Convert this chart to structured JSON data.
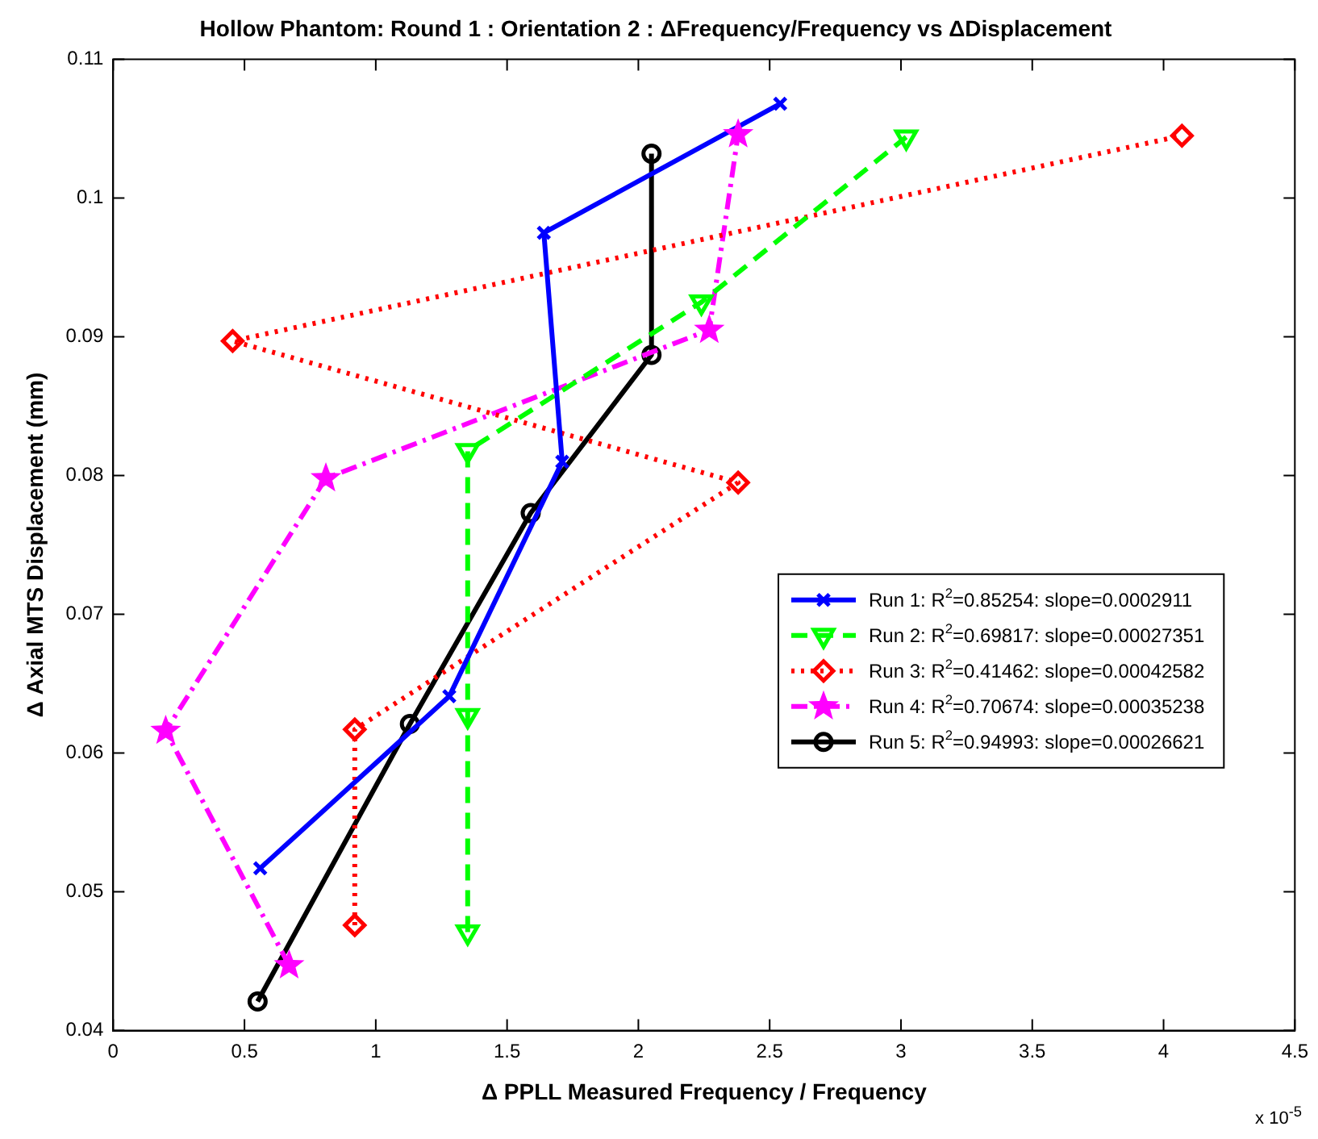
{
  "chart_data": {
    "type": "line",
    "title": "Hollow Phantom: Round 1 : Orientation 2 : ΔFrequency/Frequency vs ΔDisplacement",
    "xlabel": "Δ PPLL Measured Frequency / Frequency",
    "ylabel": "Δ Axial MTS Displacement (mm)",
    "annotations": [
      "x 10$^{-5}$"
    ],
    "xlim": [
      0,
      4.5
    ],
    "xticks": [
      0,
      0.5,
      1,
      1.5,
      2,
      2.5,
      3,
      3.5,
      4,
      4.5
    ],
    "ylim": [
      0.04,
      0.11
    ],
    "yticks": [
      0.04,
      0.05,
      0.06,
      0.07,
      0.08,
      0.09,
      0.1,
      0.11
    ],
    "grid": false,
    "legend": "right",
    "series": [
      {
        "name": "Run 1: R$^{2}$=0.85254: slope=0.0002911",
        "color": "#0000ff",
        "marker": "cross",
        "line_style": "solid",
        "x": [
          0.56,
          1.28,
          1.71,
          1.64,
          2.54
        ],
        "values": [
          0.0517,
          0.0641,
          0.081,
          0.0975,
          0.1068
        ]
      },
      {
        "name": "Run 2: R$^{2}$=0.69817: slope=0.00027351",
        "color": "#00ff00",
        "marker": "triangle",
        "line_style": "dashed",
        "x": [
          1.35,
          1.35,
          1.35,
          2.24,
          3.02
        ],
        "values": [
          0.0471,
          0.0627,
          0.0818,
          0.0925,
          0.1044
        ]
      },
      {
        "name": "Run 3: R$^{2}$=0.41462: slope=0.00042582",
        "color": "#ff0000",
        "marker": "diamond",
        "line_style": "dotted",
        "x": [
          0.92,
          0.92,
          2.38,
          0.455,
          4.07
        ],
        "values": [
          0.0476,
          0.0617,
          0.0795,
          0.0897,
          0.1045
        ]
      },
      {
        "name": "Run 4: R$^{2}$=0.70674: slope=0.00035238",
        "color": "#ff00ff",
        "marker": "star",
        "line_style": "dashdot",
        "x": [
          0.67,
          0.2,
          0.81,
          2.27,
          2.38
        ],
        "values": [
          0.0447,
          0.0616,
          0.0798,
          0.0905,
          0.1046
        ]
      },
      {
        "name": "Run 5: R$^{2}$=0.94993: slope=0.00026621",
        "color": "#000000",
        "marker": "circle",
        "line_style": "solid",
        "x": [
          0.55,
          1.13,
          1.59,
          2.05,
          2.05
        ],
        "values": [
          0.0421,
          0.0621,
          0.0773,
          0.0887,
          0.1032
        ]
      }
    ]
  }
}
